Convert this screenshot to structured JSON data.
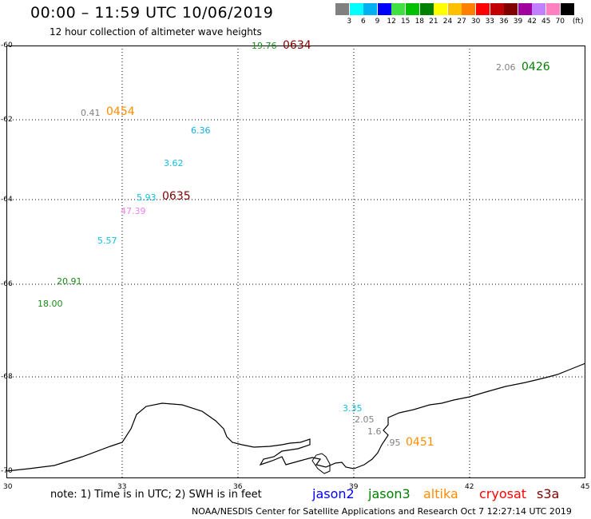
{
  "header": {
    "title": "00:00 – 11:59 UTC 10/06/2019",
    "subtitle": "12 hour collection of altimeter wave heights"
  },
  "legend": {
    "unit_label": "(ft)",
    "bins": [
      {
        "label": "3",
        "color": "#808080"
      },
      {
        "label": "6",
        "color": "#00ffff"
      },
      {
        "label": "9",
        "color": "#00b0f0"
      },
      {
        "label": "12",
        "color": "#0000ff"
      },
      {
        "label": "15",
        "color": "#40e040"
      },
      {
        "label": "18",
        "color": "#00c000"
      },
      {
        "label": "21",
        "color": "#008000"
      },
      {
        "label": "24",
        "color": "#ffff00"
      },
      {
        "label": "27",
        "color": "#ffc000"
      },
      {
        "label": "30",
        "color": "#ff8000"
      },
      {
        "label": "33",
        "color": "#ff0000"
      },
      {
        "label": "36",
        "color": "#c00000"
      },
      {
        "label": "39",
        "color": "#800000"
      },
      {
        "label": "42",
        "color": "#a000a0"
      },
      {
        "label": "45",
        "color": "#c080ff"
      },
      {
        "label": "70",
        "color": "#ff80c0"
      },
      {
        "label": "",
        "color": "#000000"
      }
    ]
  },
  "axes": {
    "lat_labels": [
      "-60",
      "-62",
      "-64",
      "-66",
      "-68",
      "-70"
    ],
    "lon_labels": [
      "30",
      "33",
      "36",
      "39",
      "42",
      "45"
    ]
  },
  "observations": [
    {
      "value": "19.76",
      "color": "#1a8a1a"
    },
    {
      "value": "2.06",
      "color": "#808080"
    },
    {
      "value": "0.41",
      "color": "#808080"
    },
    {
      "value": "6.36",
      "color": "#10b0e0"
    },
    {
      "value": "3.62",
      "color": "#10c0e0"
    },
    {
      "value": "5.93",
      "color": "#10c0e0"
    },
    {
      "value": "47.39",
      "color": "#ee82ee"
    },
    {
      "value": "5.57",
      "color": "#10c0e0"
    },
    {
      "value": "20.91",
      "color": "#1a8a1a"
    },
    {
      "value": "18.00",
      "color": "#1a8a1a"
    },
    {
      "value": "3.35",
      "color": "#10c0e0"
    },
    {
      "value": "2.05",
      "color": "#808080"
    },
    {
      "value": "1.6",
      "color": "#808080"
    },
    {
      "value": ".95",
      "color": "#808080"
    }
  ],
  "pass_times": [
    {
      "value": "0634",
      "color": "#800000"
    },
    {
      "value": "0426",
      "color": "#008000"
    },
    {
      "value": "0454",
      "color": "#ff8c00"
    },
    {
      "value": "0635",
      "color": "#800000"
    },
    {
      "value": "0451",
      "color": "#ff8c00"
    }
  ],
  "footer": {
    "note": "note:  1) Time is in UTC;  2) SWH is in feet",
    "satellites": [
      {
        "name": "jason2",
        "color": "#0000ff"
      },
      {
        "name": "jason3",
        "color": "#008000"
      },
      {
        "name": "altika",
        "color": "#ff8c00"
      },
      {
        "name": "cryosat",
        "color": "#ff0000"
      },
      {
        "name": "s3a",
        "color": "#800000"
      }
    ],
    "credit": "NOAA/NESDIS Center for Satellite Applications and Research     Oct  7 12:27:14 UTC 2019"
  }
}
